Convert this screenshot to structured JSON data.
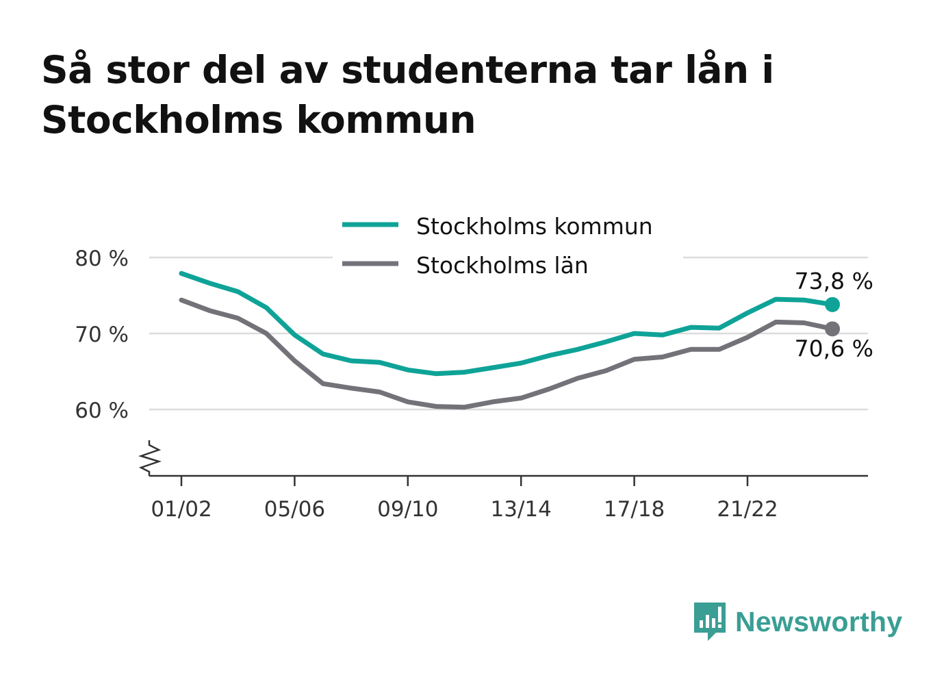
{
  "title": "Så stor del av studenterna tar lån i Stockholms kommun",
  "brand": {
    "name": "Newsworthy",
    "icon": "newsworthy-logo-icon",
    "color": "#3a9e94"
  },
  "chart_data": {
    "type": "line",
    "title": "Så stor del av studenterna tar lån i Stockholms kommun",
    "categories": [
      "01/02",
      "02/03",
      "03/04",
      "04/05",
      "05/06",
      "06/07",
      "07/08",
      "08/09",
      "09/10",
      "10/11",
      "11/12",
      "12/13",
      "13/14",
      "14/15",
      "15/16",
      "16/17",
      "17/18",
      "18/19",
      "19/20",
      "20/21",
      "21/22",
      "22/23",
      "23/24",
      "24/25"
    ],
    "x_tick_labels": [
      "01/02",
      "05/06",
      "09/10",
      "13/14",
      "17/18",
      "21/22"
    ],
    "y_ticks": [
      60,
      70,
      80
    ],
    "y_tick_labels": [
      "60 %",
      "70 %",
      "80 %"
    ],
    "ylim": [
      51.3,
      80
    ],
    "y_axis_break": true,
    "grid": true,
    "legend_position": "top-center",
    "series": [
      {
        "name": "Stockholms kommun",
        "color": "#0fa398",
        "values": [
          77.9,
          76.6,
          75.5,
          73.4,
          69.8,
          67.3,
          66.4,
          66.2,
          65.2,
          64.7,
          64.9,
          65.5,
          66.1,
          67.1,
          67.9,
          68.9,
          70.0,
          69.8,
          70.8,
          70.7,
          72.7,
          74.5,
          74.4,
          73.8
        ],
        "end_label": "73,8 %"
      },
      {
        "name": "Stockholms län",
        "color": "#747279",
        "values": [
          74.4,
          73.0,
          72.0,
          70.0,
          66.4,
          63.4,
          62.8,
          62.3,
          61.0,
          60.4,
          60.3,
          61.0,
          61.5,
          62.7,
          64.1,
          65.1,
          66.6,
          66.9,
          67.9,
          67.9,
          69.5,
          71.5,
          71.4,
          70.6
        ],
        "end_label": "70,6 %"
      }
    ]
  }
}
